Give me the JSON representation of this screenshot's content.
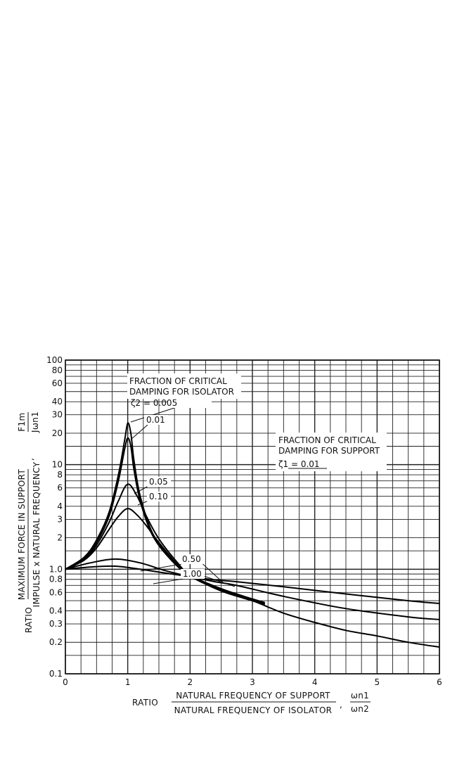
{
  "chart_data": {
    "type": "line",
    "x_axis": {
      "label_prefix": "RATIO",
      "label_numerator": "NATURAL FREQUENCY OF SUPPORT",
      "label_denominator": "NATURAL FREQUENCY OF ISOLATOR",
      "symbol_numerator": "ωn1",
      "symbol_denominator": "ωn2",
      "scale": "linear",
      "range": [
        0,
        6
      ],
      "ticks": [
        0,
        1,
        2,
        3,
        4,
        5,
        6
      ],
      "tick_labels": [
        "0",
        "1",
        "2",
        "3",
        "4",
        "5",
        "6"
      ]
    },
    "y_axis": {
      "label_prefix": "RATIO",
      "label_numerator": "MAXIMUM FORCE IN SUPPORT",
      "label_denominator": "IMPULSE x NATURAL FREQUENCY",
      "symbol_numerator": "F1m",
      "symbol_denominator": "Jωn1",
      "scale": "log",
      "range": [
        0.1,
        100
      ],
      "ticks": [
        0.1,
        0.2,
        0.3,
        0.4,
        0.6,
        0.8,
        1.0,
        2,
        3,
        4,
        6,
        8,
        10,
        20,
        30,
        40,
        60,
        80,
        100
      ],
      "tick_labels": [
        "0.1",
        "0.2",
        "0.3",
        "0.4",
        "0.6",
        "0.8",
        "1.0",
        "2",
        "3",
        "4",
        "6",
        "8",
        "10",
        "20",
        "30",
        "40",
        "60",
        "80",
        "100"
      ]
    },
    "grid": true,
    "annotations": {
      "isolator_damping_title_1": "FRACTION OF CRITICAL",
      "isolator_damping_title_2": "DAMPING FOR ISOLATOR",
      "support_damping_title_1": "FRACTION OF CRITICAL",
      "support_damping_title_2": "DAMPING FOR SUPPORT",
      "support_damping_value": "ζ1 = 0.01"
    },
    "series": [
      {
        "name": "ζ2 = 0.005",
        "label": "0.005",
        "x": [
          0,
          0.3,
          0.5,
          0.7,
          0.85,
          0.95,
          1.0,
          1.05,
          1.1,
          1.2,
          1.4,
          1.7,
          2.0,
          2.5,
          3.0,
          3.2
        ],
        "y": [
          1.0,
          1.3,
          1.9,
          3.5,
          8.0,
          17.0,
          25.0,
          20.0,
          11.0,
          5.0,
          2.2,
          1.25,
          0.88,
          0.65,
          0.52,
          0.48
        ]
      },
      {
        "name": "ζ2 = 0.01",
        "label": "0.01",
        "x": [
          0,
          0.3,
          0.5,
          0.7,
          0.85,
          0.95,
          1.0,
          1.05,
          1.1,
          1.2,
          1.4,
          1.7,
          2.0,
          2.5,
          3.0,
          3.2
        ],
        "y": [
          1.0,
          1.28,
          1.8,
          3.2,
          7.0,
          14.0,
          18.0,
          15.0,
          9.0,
          4.5,
          2.1,
          1.22,
          0.87,
          0.64,
          0.51,
          0.47
        ]
      },
      {
        "name": "ζ2 = 0.05",
        "label": "0.05",
        "x": [
          0,
          0.3,
          0.5,
          0.7,
          0.85,
          1.0,
          1.15,
          1.3,
          1.5,
          1.8,
          2.0,
          2.5,
          3.0,
          3.2
        ],
        "y": [
          1.0,
          1.25,
          1.7,
          2.8,
          4.5,
          6.5,
          5.0,
          3.2,
          1.95,
          1.15,
          0.88,
          0.63,
          0.5,
          0.47
        ]
      },
      {
        "name": "ζ2 = 0.10",
        "label": "0.10",
        "x": [
          0,
          0.3,
          0.5,
          0.7,
          0.85,
          1.0,
          1.15,
          1.3,
          1.5,
          1.8,
          2.0,
          2.5,
          3.0,
          3.2
        ],
        "y": [
          1.0,
          1.22,
          1.6,
          2.4,
          3.2,
          3.8,
          3.3,
          2.6,
          1.8,
          1.1,
          0.86,
          0.62,
          0.5,
          0.46
        ]
      },
      {
        "name": "ζ2 = 0.50",
        "label": "0.50",
        "x": [
          0,
          0.4,
          0.8,
          1.2,
          1.6,
          2.0,
          2.4,
          2.75,
          3.5,
          4.5,
          5.5,
          6.0
        ],
        "y": [
          1.0,
          1.15,
          1.25,
          1.15,
          0.97,
          0.85,
          0.76,
          0.7,
          0.55,
          0.42,
          0.35,
          0.33
        ]
      },
      {
        "name": "ζ2 = 1.00",
        "label": "1.00",
        "x": [
          0,
          0.4,
          0.8,
          1.2,
          1.6,
          2.0,
          2.4,
          2.75,
          3.5,
          4.5,
          5.5,
          6.0
        ],
        "y": [
          1.0,
          1.05,
          1.07,
          1.0,
          0.92,
          0.85,
          0.79,
          0.76,
          0.68,
          0.58,
          0.5,
          0.47
        ]
      },
      {
        "name": "tail",
        "label": "",
        "x": [
          2.0,
          2.5,
          3.0,
          3.5,
          4.0,
          4.5,
          5.0,
          5.5,
          6.0
        ],
        "y": [
          0.86,
          0.62,
          0.5,
          0.38,
          0.31,
          0.26,
          0.23,
          0.2,
          0.18
        ]
      }
    ]
  }
}
